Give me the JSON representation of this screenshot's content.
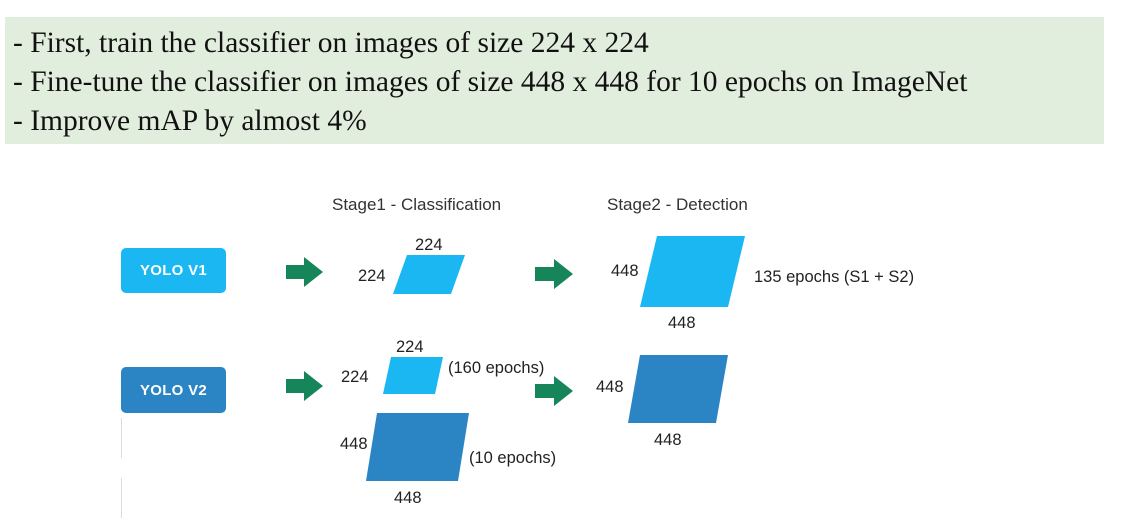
{
  "banner": {
    "bullets": [
      "- First, train the classifier on images of size 224 x 224",
      "- Fine-tune the classifier on images of size 448 x 448 for 10 epochs on ImageNet",
      "- Improve mAP by almost 4%"
    ]
  },
  "diagram": {
    "stage1_title": "Stage1 - Classification",
    "stage2_title": "Stage2 - Detection",
    "yolo_v1": {
      "label": "YOLO V1",
      "s1_top": "224",
      "s1_left": "224",
      "s2_left": "448",
      "s2_bottom": "448",
      "note": "135 epochs (S1 + S2)"
    },
    "yolo_v2": {
      "label": "YOLO V2",
      "s1a_top": "224",
      "s1a_left": "224",
      "s1a_note": "(160 epochs)",
      "s1b_left": "448",
      "s1b_bottom": "448",
      "s1b_note": "(10 epochs)",
      "s2_left": "448",
      "s2_bottom": "448"
    }
  },
  "colors": {
    "banner_bg": "#e2eedd",
    "light_blue": "#1ab7f3",
    "dark_blue": "#2b84c4",
    "arrow_green": "#16855a"
  }
}
